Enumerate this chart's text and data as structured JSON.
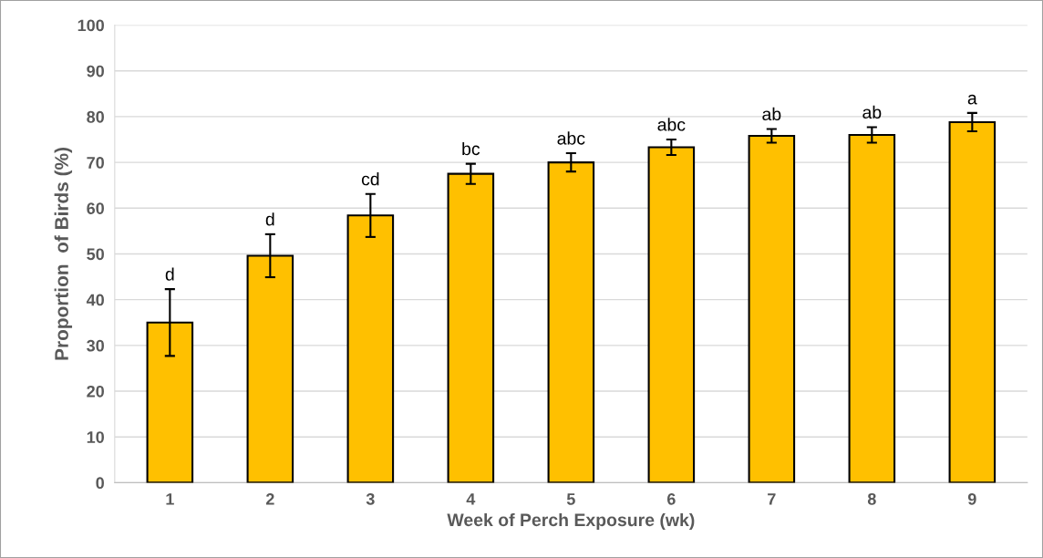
{
  "chart_data": {
    "type": "bar",
    "xlabel": "Week of Perch Exposure (wk)",
    "ylabel": "Proportion  of Birds (%)",
    "categories": [
      "1",
      "2",
      "3",
      "4",
      "5",
      "6",
      "7",
      "8",
      "9"
    ],
    "values": [
      35,
      49.6,
      58.4,
      67.5,
      70,
      73.3,
      75.8,
      76,
      78.8
    ],
    "errors": [
      7.3,
      4.7,
      4.7,
      2.2,
      2,
      1.7,
      1.5,
      1.7,
      2
    ],
    "color": "#ffc000",
    "ylim": [
      0,
      100
    ],
    "yticks": [
      0,
      10,
      20,
      30,
      40,
      50,
      60,
      70,
      80,
      90,
      100
    ],
    "grid": "y",
    "annotations": [
      {
        "text": "d",
        "x": "1",
        "y": 42.3
      },
      {
        "text": "d",
        "x": "2",
        "y": 54.3
      },
      {
        "text": "cd",
        "x": "3",
        "y": 63.1
      },
      {
        "text": "bc",
        "x": "4",
        "y": 69.7
      },
      {
        "text": "abc",
        "x": "5",
        "y": 72
      },
      {
        "text": "abc",
        "x": "6",
        "y": 75
      },
      {
        "text": "ab",
        "x": "7",
        "y": 77.3
      },
      {
        "text": "ab",
        "x": "8",
        "y": 77.7
      },
      {
        "text": "a",
        "x": "9",
        "y": 80.8
      }
    ]
  }
}
